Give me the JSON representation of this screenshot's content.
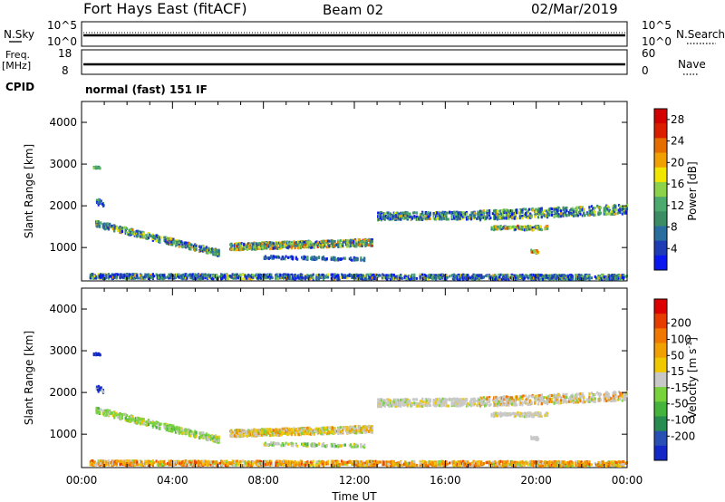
{
  "header": {
    "radar": "Fort Hays East (fitACF)",
    "beam": "Beam 02",
    "date": "02/Mar/2019"
  },
  "strips": {
    "nsky_label": "N.Sky",
    "nsearch_label": "N.Search",
    "nsky_ticks": [
      "10^5",
      "10^0"
    ],
    "nsky_right_ticks": [
      "10^5",
      "10^0"
    ],
    "freq_label": "Freq.",
    "freq_unit": "[MHz]",
    "freq_ticks": [
      "18",
      "8"
    ],
    "nave_label": "Nave",
    "nave_ticks": [
      "60",
      "0"
    ],
    "cpid_label": "CPID",
    "cpid_text": "normal (fast) 151 IF"
  },
  "chart_data": [
    {
      "type": "heatmap",
      "name": "power",
      "ylabel": "Slant Range [km]",
      "xlabel": "",
      "ylim": [
        200,
        4500
      ],
      "yticks": [
        1000,
        2000,
        3000,
        4000
      ],
      "xlim": [
        0,
        24
      ],
      "colorbar": {
        "label": "Power [dB]",
        "ticks": [
          "4",
          "8",
          "12",
          "16",
          "20",
          "24",
          "28"
        ],
        "range": [
          0,
          30
        ],
        "colors": [
          "#0a18f0",
          "#1e3cb4",
          "#2a6ea0",
          "#3c8c64",
          "#4caa6e",
          "#8cd24a",
          "#f0e600",
          "#f0a000",
          "#e66e00",
          "#dc1e00",
          "#d20000"
        ]
      }
    },
    {
      "type": "heatmap",
      "name": "velocity",
      "ylabel": "Slant Range [km]",
      "xlabel": "Time UT",
      "ylim": [
        200,
        4500
      ],
      "yticks": [
        1000,
        2000,
        3000,
        4000
      ],
      "xlim": [
        0,
        24
      ],
      "xticks": [
        "00:00",
        "04:00",
        "08:00",
        "12:00",
        "16:00",
        "20:00",
        "00:00"
      ],
      "colorbar": {
        "label": "Velocity [m s",
        "label_sup": "-1",
        "label_end": "]",
        "ticks": [
          "200",
          "100",
          "50",
          "15",
          "-15",
          "-50",
          "-100",
          "-200"
        ],
        "colors": [
          "#1428c8",
          "#2850b4",
          "#288c50",
          "#46b43c",
          "#78d23c",
          "#c8c8c8",
          "#f0c800",
          "#f0a000",
          "#f07800",
          "#e63c00",
          "#dc0000"
        ]
      }
    }
  ]
}
